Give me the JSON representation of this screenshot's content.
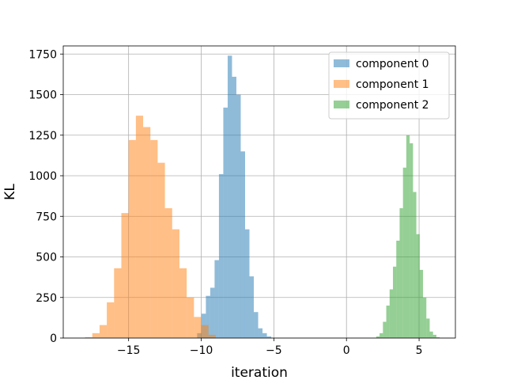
{
  "chart_data": {
    "type": "bar",
    "title": "",
    "xlabel": "iteration",
    "ylabel": "KL",
    "xlim": [
      -19.5,
      7.5
    ],
    "ylim": [
      0,
      1800
    ],
    "xticks": [
      -15,
      -10,
      -5,
      0,
      5
    ],
    "xtick_labels": [
      "−15",
      "−10",
      "−5",
      "0",
      "5"
    ],
    "yticks": [
      0,
      250,
      500,
      750,
      1000,
      1250,
      1500,
      1750
    ],
    "ytick_labels": [
      "0",
      "250",
      "500",
      "750",
      "1000",
      "1250",
      "1500",
      "1750"
    ],
    "grid": true,
    "legend_position": "top-right",
    "series": [
      {
        "name": "component 0",
        "color": "#1f77b4",
        "opacity": 0.5,
        "bins": [
          [
            -10.28,
            -9.98,
            30
          ],
          [
            -9.98,
            -9.68,
            150
          ],
          [
            -9.68,
            -9.38,
            260
          ],
          [
            -9.38,
            -9.08,
            310
          ],
          [
            -9.08,
            -8.78,
            480
          ],
          [
            -8.78,
            -8.48,
            1010
          ],
          [
            -8.48,
            -8.18,
            1420
          ],
          [
            -8.18,
            -7.88,
            1740
          ],
          [
            -7.88,
            -7.58,
            1610
          ],
          [
            -7.58,
            -7.28,
            1500
          ],
          [
            -7.28,
            -6.98,
            1150
          ],
          [
            -6.98,
            -6.68,
            670
          ],
          [
            -6.68,
            -6.38,
            380
          ],
          [
            -6.38,
            -6.08,
            160
          ],
          [
            -6.08,
            -5.78,
            60
          ],
          [
            -5.78,
            -5.48,
            30
          ],
          [
            -5.48,
            -5.18,
            10
          ]
        ]
      },
      {
        "name": "component 1",
        "color": "#ff7f0e",
        "opacity": 0.5,
        "bins": [
          [
            -18.0,
            -17.5,
            5
          ],
          [
            -17.5,
            -17.0,
            30
          ],
          [
            -17.0,
            -16.5,
            80
          ],
          [
            -16.5,
            -16.0,
            220
          ],
          [
            -16.0,
            -15.5,
            430
          ],
          [
            -15.5,
            -15.0,
            770
          ],
          [
            -15.0,
            -14.5,
            1220
          ],
          [
            -14.5,
            -14.0,
            1370
          ],
          [
            -14.0,
            -13.5,
            1300
          ],
          [
            -13.5,
            -13.0,
            1220
          ],
          [
            -13.0,
            -12.5,
            1080
          ],
          [
            -12.5,
            -12.0,
            800
          ],
          [
            -12.0,
            -11.5,
            670
          ],
          [
            -11.5,
            -11.0,
            430
          ],
          [
            -11.0,
            -10.5,
            250
          ],
          [
            -10.5,
            -10.0,
            130
          ],
          [
            -10.0,
            -9.5,
            80
          ],
          [
            -9.5,
            -9.0,
            20
          ]
        ]
      },
      {
        "name": "component 2",
        "color": "#2ca02c",
        "opacity": 0.5,
        "bins": [
          [
            2.05,
            2.28,
            10
          ],
          [
            2.28,
            2.51,
            30
          ],
          [
            2.51,
            2.74,
            100
          ],
          [
            2.74,
            2.97,
            200
          ],
          [
            2.97,
            3.2,
            300
          ],
          [
            3.2,
            3.43,
            440
          ],
          [
            3.43,
            3.66,
            600
          ],
          [
            3.66,
            3.89,
            800
          ],
          [
            3.89,
            4.12,
            1050
          ],
          [
            4.12,
            4.35,
            1250
          ],
          [
            4.35,
            4.58,
            1200
          ],
          [
            4.58,
            4.81,
            900
          ],
          [
            4.81,
            5.04,
            640
          ],
          [
            5.04,
            5.27,
            420
          ],
          [
            5.27,
            5.5,
            250
          ],
          [
            5.5,
            5.73,
            120
          ],
          [
            5.73,
            5.96,
            40
          ],
          [
            5.96,
            6.19,
            20
          ],
          [
            6.19,
            6.42,
            5
          ]
        ]
      }
    ]
  }
}
